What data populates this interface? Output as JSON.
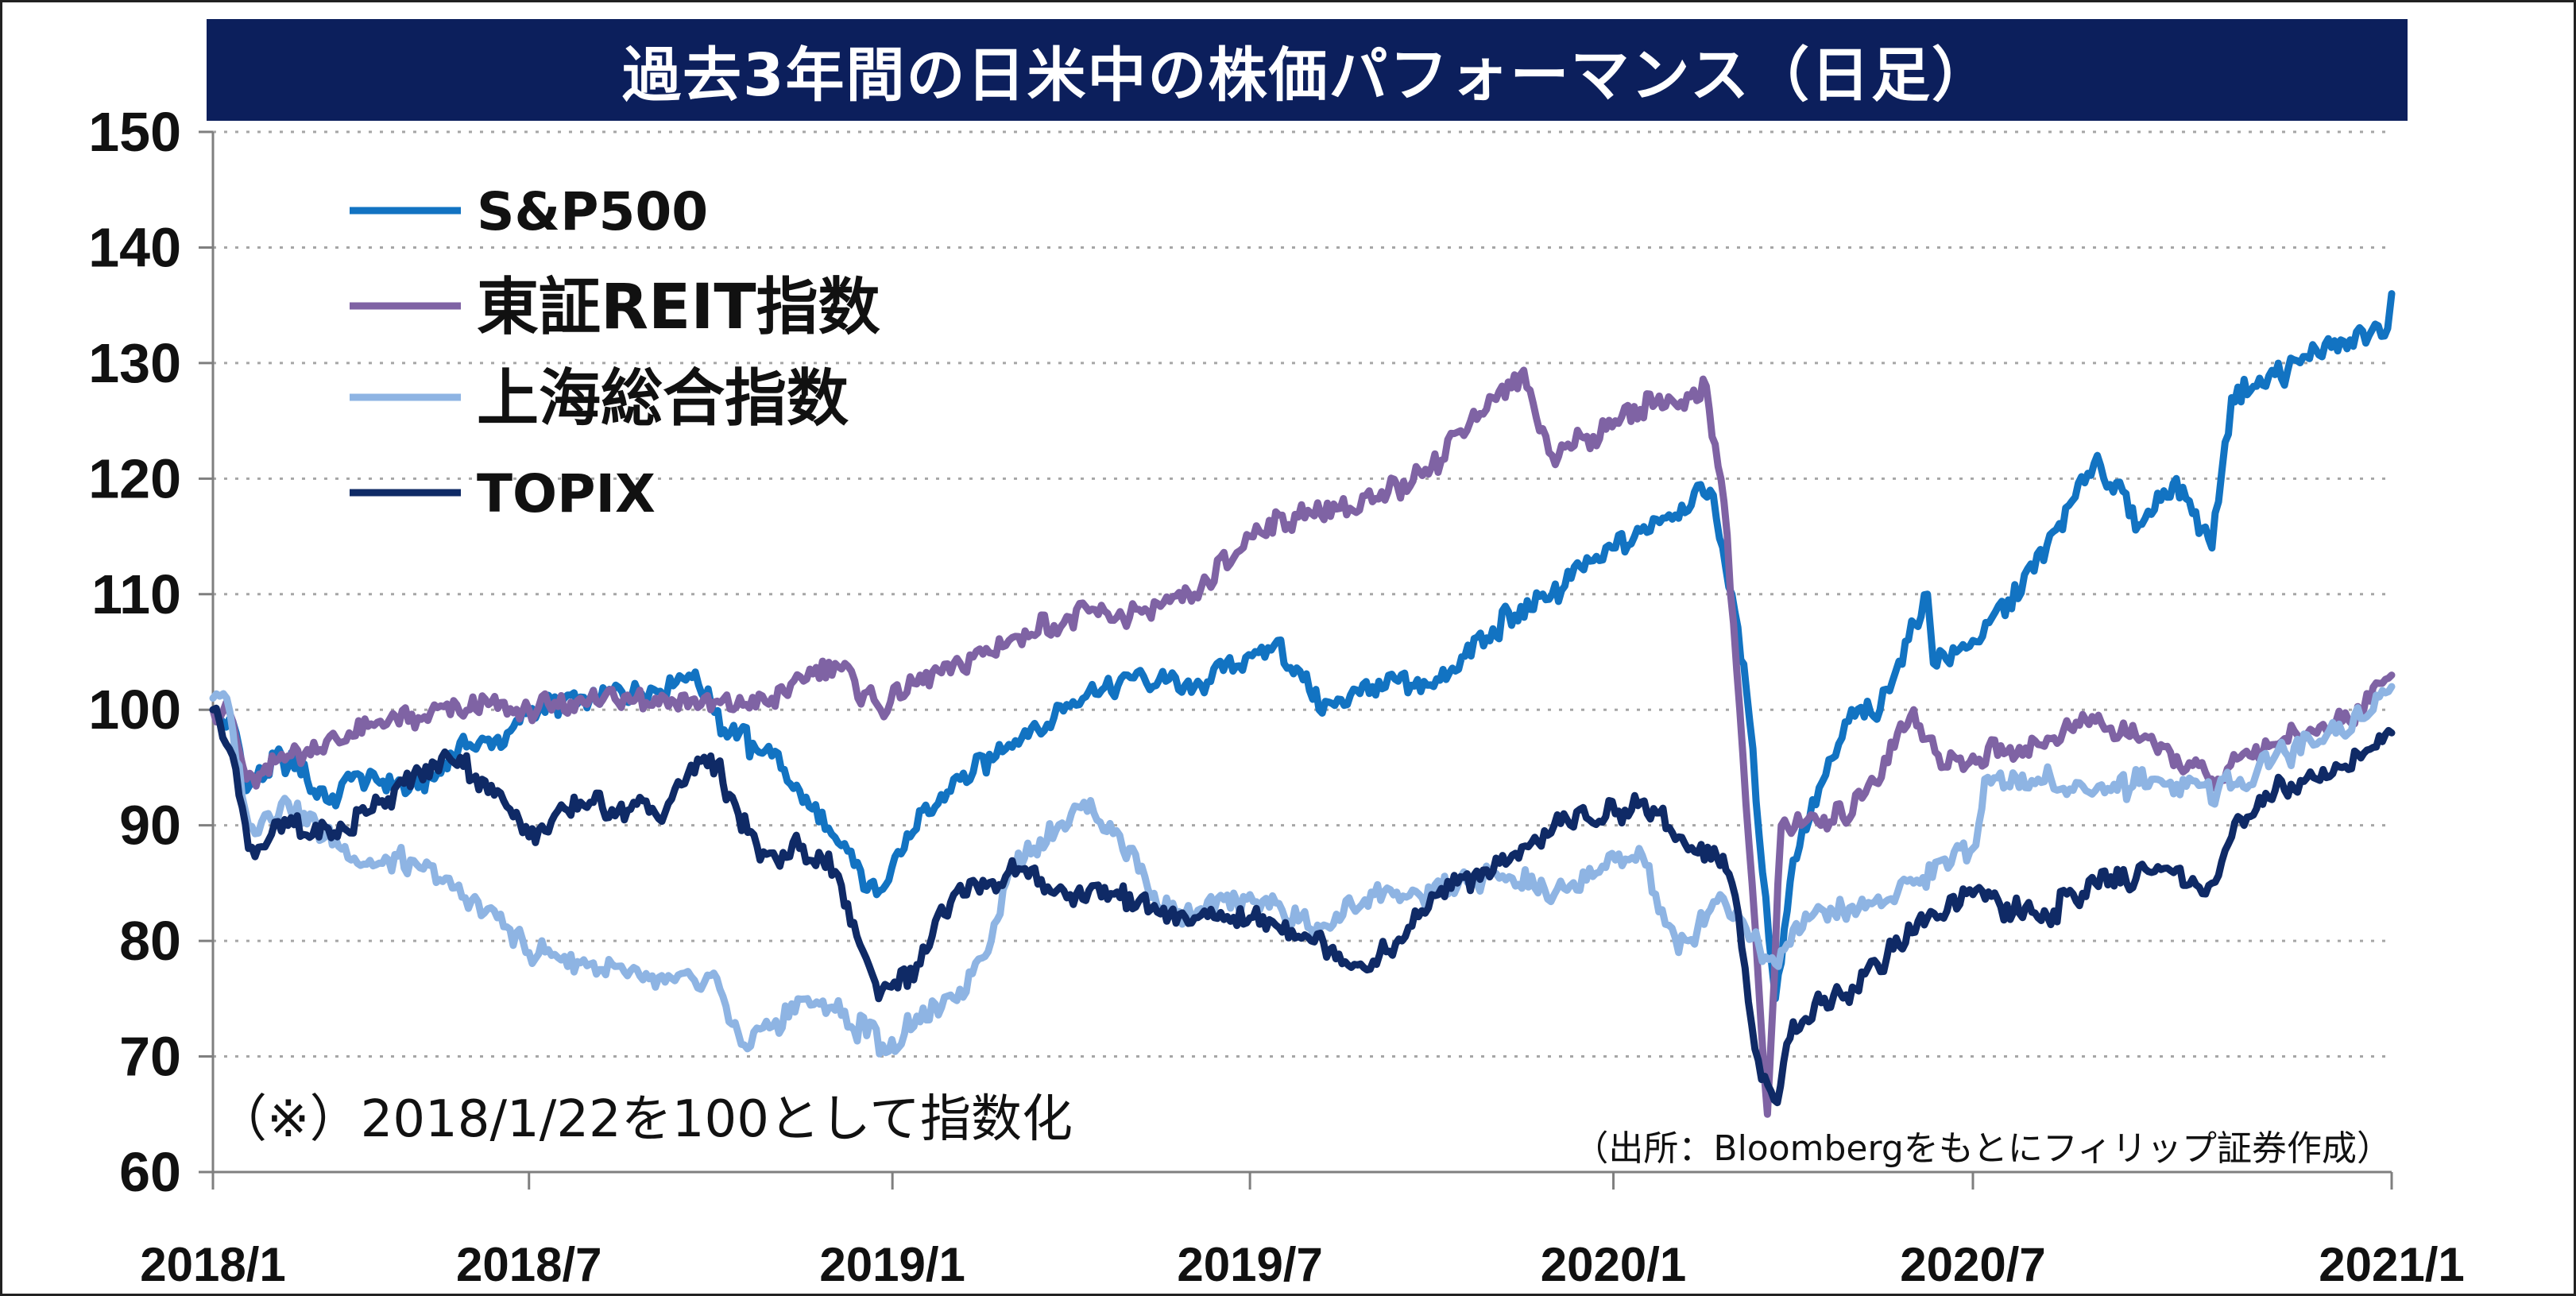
{
  "title": "過去3年間の日米中の株価パフォーマンス（日足）",
  "note": "（※）2018/1/22を100として指数化",
  "source": "（出所：Bloombergをもとにフィリップ証券作成）",
  "chart_data": {
    "type": "line",
    "title": "過去3年間の日米中の株価パフォーマンス（日足）",
    "xlabel": "",
    "ylabel": "",
    "ylim": [
      60,
      150
    ],
    "yticks": [
      60,
      70,
      80,
      90,
      100,
      110,
      120,
      130,
      140,
      150
    ],
    "xlim": [
      "2018-01-22",
      "2021-01-29"
    ],
    "xticks": [
      {
        "date": "2018-01-22",
        "label": "2018/1"
      },
      {
        "date": "2018-07-01",
        "label": "2018/7"
      },
      {
        "date": "2019-01-01",
        "label": "2019/1"
      },
      {
        "date": "2019-07-01",
        "label": "2019/7"
      },
      {
        "date": "2020-01-01",
        "label": "2020/1"
      },
      {
        "date": "2020-07-01",
        "label": "2020/7"
      },
      {
        "date": "2021-01-29",
        "label": "2021/1"
      }
    ],
    "grid": "horizontal dotted",
    "legend": "top-left",
    "series": [
      {
        "name": "S&P500",
        "color": "#1273c2",
        "x": [
          "2018-01-22",
          "2018-02-01",
          "2018-02-08",
          "2018-02-26",
          "2018-03-22",
          "2018-04-02",
          "2018-05-01",
          "2018-06-01",
          "2018-06-20",
          "2018-07-01",
          "2018-08-01",
          "2018-09-20",
          "2018-10-11",
          "2018-11-01",
          "2018-11-15",
          "2018-12-24",
          "2019-01-10",
          "2019-02-01",
          "2019-03-01",
          "2019-04-30",
          "2019-06-03",
          "2019-07-15",
          "2019-08-05",
          "2019-09-01",
          "2019-10-02",
          "2019-11-01",
          "2019-12-01",
          "2020-01-02",
          "2020-02-19",
          "2020-03-01",
          "2020-03-10",
          "2020-03-23",
          "2020-04-01",
          "2020-04-29",
          "2020-05-15",
          "2020-06-08",
          "2020-06-11",
          "2020-07-01",
          "2020-08-01",
          "2020-09-02",
          "2020-09-23",
          "2020-10-12",
          "2020-10-30",
          "2020-11-09",
          "2020-12-01",
          "2021-01-08",
          "2021-01-27",
          "2021-01-29"
        ],
        "values": [
          100,
          99,
          93,
          96,
          92,
          94,
          93,
          97,
          98,
          100,
          101,
          103,
          98,
          96,
          93,
          84,
          89,
          94,
          97,
          103,
          102,
          106,
          100,
          102,
          102,
          107,
          110,
          114,
          119,
          110,
          99,
          75,
          87,
          99,
          100,
          110,
          104,
          106,
          112,
          122,
          116,
          120,
          114,
          127,
          129,
          132,
          133,
          136
        ]
      },
      {
        "name": "東証REIT指数",
        "color": "#7f63a4",
        "x": [
          "2018-01-22",
          "2018-02-01",
          "2018-02-08",
          "2018-03-01",
          "2018-04-01",
          "2018-05-01",
          "2018-06-01",
          "2018-07-01",
          "2018-08-01",
          "2018-09-03",
          "2018-10-01",
          "2018-11-01",
          "2018-12-03",
          "2018-12-26",
          "2019-01-15",
          "2019-02-01",
          "2019-03-01",
          "2019-04-01",
          "2019-05-01",
          "2019-06-03",
          "2019-07-01",
          "2019-08-01",
          "2019-09-01",
          "2019-10-01",
          "2019-11-01",
          "2019-11-15",
          "2019-12-01",
          "2020-01-02",
          "2020-02-17",
          "2020-02-26",
          "2020-03-05",
          "2020-03-19",
          "2020-03-26",
          "2020-04-15",
          "2020-05-01",
          "2020-06-01",
          "2020-06-15",
          "2020-07-01",
          "2020-08-03",
          "2020-09-01",
          "2020-10-01",
          "2020-11-02",
          "2020-12-01",
          "2021-01-04",
          "2021-01-29"
        ],
        "values": [
          100,
          99,
          94,
          96,
          98,
          99,
          100,
          100,
          101,
          101,
          100,
          101,
          104,
          100,
          103,
          104,
          106,
          108,
          108,
          110,
          115,
          117,
          118,
          121,
          127,
          129,
          122,
          125,
          128,
          118,
          100,
          65,
          90,
          90,
          91,
          100,
          95,
          96,
          97,
          99,
          97,
          94,
          97,
          99,
          103
        ]
      },
      {
        "name": "上海総合指数",
        "color": "#8eb4e3",
        "x": [
          "2018-01-22",
          "2018-01-29",
          "2018-02-09",
          "2018-03-01",
          "2018-04-02",
          "2018-05-02",
          "2018-06-15",
          "2018-07-01",
          "2018-08-01",
          "2018-09-03",
          "2018-10-01",
          "2018-10-18",
          "2018-11-19",
          "2018-12-03",
          "2018-12-27",
          "2019-01-15",
          "2019-02-01",
          "2019-02-20",
          "2019-03-01",
          "2019-04-08",
          "2019-05-01",
          "2019-05-15",
          "2019-06-03",
          "2019-07-01",
          "2019-08-01",
          "2019-09-02",
          "2019-10-01",
          "2019-11-01",
          "2019-12-02",
          "2020-01-02",
          "2020-01-14",
          "2020-02-03",
          "2020-02-24",
          "2020-03-23",
          "2020-04-01",
          "2020-05-01",
          "2020-06-01",
          "2020-07-01",
          "2020-07-07",
          "2020-08-03",
          "2020-09-01",
          "2020-10-01",
          "2020-11-02",
          "2020-12-01",
          "2021-01-04",
          "2021-01-29"
        ],
        "values": [
          101,
          101,
          90,
          92,
          87,
          87,
          82,
          79,
          78,
          76,
          77,
          71,
          75,
          74,
          71,
          73,
          75,
          80,
          86,
          92,
          88,
          83,
          82,
          84,
          81,
          84,
          84,
          86,
          84,
          87,
          88,
          79,
          84,
          78,
          81,
          83,
          85,
          88,
          94,
          94,
          93,
          94,
          93,
          96,
          98,
          102
        ]
      },
      {
        "name": "TOPIX",
        "color": "#0f2a66",
        "x": [
          "2018-01-22",
          "2018-02-01",
          "2018-02-09",
          "2018-03-01",
          "2018-03-26",
          "2018-04-16",
          "2018-05-21",
          "2018-06-15",
          "2018-07-01",
          "2018-08-01",
          "2018-09-03",
          "2018-10-01",
          "2018-10-26",
          "2018-11-15",
          "2018-12-03",
          "2018-12-25",
          "2019-01-15",
          "2019-02-01",
          "2019-03-01",
          "2019-04-01",
          "2019-05-01",
          "2019-06-03",
          "2019-07-01",
          "2019-08-01",
          "2019-08-26",
          "2019-09-16",
          "2019-10-01",
          "2019-11-01",
          "2019-12-02",
          "2020-01-02",
          "2020-01-15",
          "2020-02-03",
          "2020-02-21",
          "2020-03-01",
          "2020-03-16",
          "2020-03-24",
          "2020-04-01",
          "2020-05-01",
          "2020-06-08",
          "2020-07-01",
          "2020-08-03",
          "2020-09-01",
          "2020-10-01",
          "2020-10-30",
          "2020-11-09",
          "2020-12-01",
          "2021-01-04",
          "2021-01-29"
        ],
        "values": [
          100,
          96,
          88,
          90,
          89,
          92,
          96,
          93,
          89,
          92,
          91,
          96,
          87,
          88,
          86,
          75,
          78,
          84,
          86,
          84,
          84,
          82,
          82,
          80,
          78,
          80,
          84,
          86,
          90,
          91,
          92,
          89,
          88,
          85,
          68,
          66,
          73,
          76,
          82,
          84,
          82,
          85,
          86,
          85,
          89,
          93,
          95,
          98
        ]
      }
    ]
  },
  "legend_items": [
    "S&P500",
    "東証REIT指数",
    "上海総合指数",
    "TOPIX"
  ]
}
